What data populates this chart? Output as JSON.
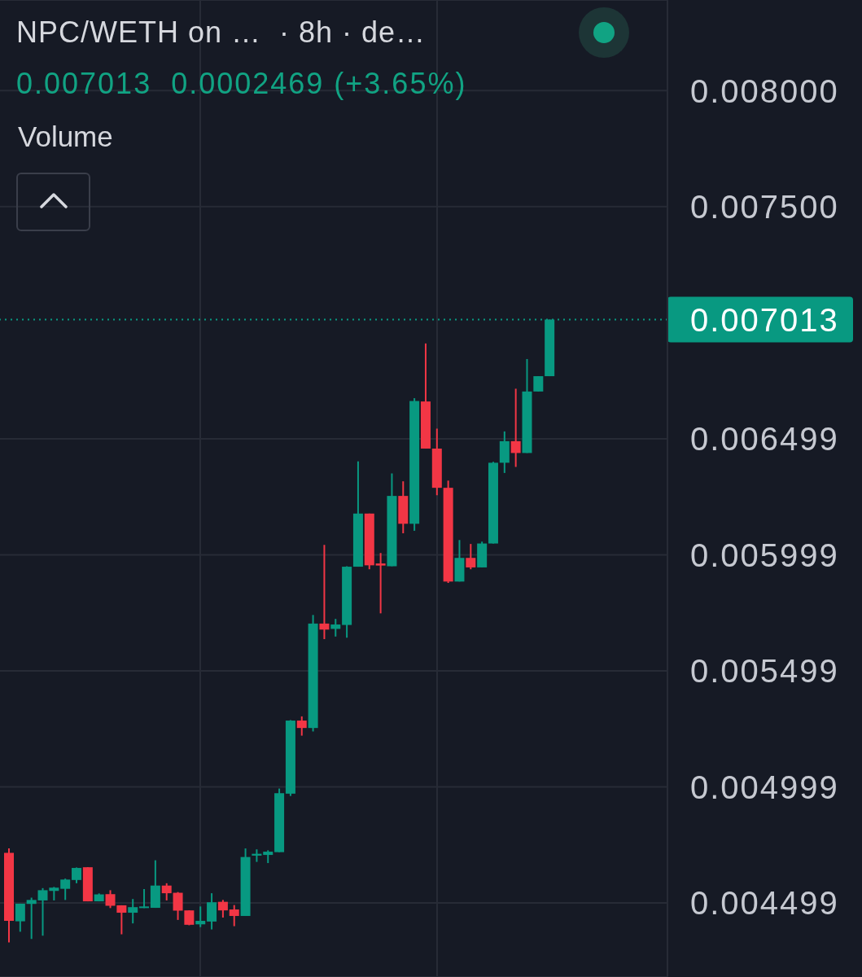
{
  "chart_data": {
    "type": "candlestick",
    "title": "NPC/WETH on …  · 8h · de…",
    "subtitle": "0.007013  0.0002469 (+3.65%)",
    "annotations": [
      "Volume"
    ],
    "categories": [
      null,
      null,
      null,
      null,
      null,
      null,
      null,
      null,
      null,
      null,
      null,
      null,
      null,
      null,
      null,
      null,
      null,
      null,
      null,
      null,
      null,
      null,
      null,
      null,
      null,
      null,
      null,
      null,
      null,
      null,
      null,
      null,
      null,
      null,
      null,
      null,
      null,
      null,
      null,
      null,
      null,
      null,
      null,
      null,
      null,
      null,
      null,
      null,
      null
    ],
    "ohlc": [
      [
        0.004715,
        0.004734,
        0.004329,
        0.004422
      ],
      [
        0.00442,
        0.004496,
        0.004375,
        0.004496
      ],
      [
        0.004495,
        0.004522,
        0.004344,
        0.004512
      ],
      [
        0.00451,
        0.004563,
        0.004358,
        0.004554
      ],
      [
        0.004551,
        0.004568,
        0.00451,
        0.004565
      ],
      [
        0.00456,
        0.004604,
        0.004512,
        0.0046
      ],
      [
        0.004598,
        0.004652,
        0.004584,
        0.00465
      ],
      [
        0.004653,
        0.004653,
        0.004506,
        0.004506
      ],
      [
        0.004506,
        0.00454,
        0.004506,
        0.004536
      ],
      [
        0.004537,
        0.004554,
        0.004477,
        0.004487
      ],
      [
        0.004489,
        0.004489,
        0.004364,
        0.004457
      ],
      [
        0.004457,
        0.004516,
        0.004411,
        0.004481
      ],
      [
        0.004477,
        0.004559,
        0.004477,
        0.004484
      ],
      [
        0.004478,
        0.004683,
        0.004478,
        0.004574
      ],
      [
        0.004574,
        0.004584,
        0.00451,
        0.004541
      ],
      [
        0.004543,
        0.004546,
        0.004426,
        0.004466
      ],
      [
        0.004467,
        0.004467,
        0.004403,
        0.004405
      ],
      [
        0.004407,
        0.004484,
        0.004395,
        0.004422
      ],
      [
        0.004419,
        0.004541,
        0.004385,
        0.004502
      ],
      [
        0.004504,
        0.004512,
        0.004436,
        0.004467
      ],
      [
        0.004471,
        0.00449,
        0.004399,
        0.004443
      ],
      [
        0.004443,
        0.004734,
        0.004443,
        0.004697
      ],
      [
        0.004703,
        0.00473,
        0.004676,
        0.004711
      ],
      [
        0.004706,
        0.004726,
        0.004671,
        0.00472
      ],
      [
        0.004718,
        0.004992,
        0.004718,
        0.004972
      ],
      [
        0.00497,
        0.005287,
        0.00496,
        0.005285
      ],
      [
        0.005285,
        0.005303,
        0.00522,
        0.005253
      ],
      [
        0.005253,
        0.00574,
        0.005238,
        0.005703
      ],
      [
        0.005703,
        0.006042,
        0.005636,
        0.005677
      ],
      [
        0.00568,
        0.005723,
        0.005647,
        0.005699
      ],
      [
        0.005697,
        0.00595,
        0.005642,
        0.005948
      ],
      [
        0.005948,
        0.006402,
        0.005948,
        0.006177
      ],
      [
        0.006177,
        0.006177,
        0.005937,
        0.005954
      ],
      [
        0.005962,
        0.006007,
        0.005747,
        0.005953
      ],
      [
        0.00595,
        0.00635,
        0.00595,
        0.006253
      ],
      [
        0.006253,
        0.006316,
        0.006092,
        0.006133
      ],
      [
        0.006133,
        0.006674,
        0.006103,
        0.006662
      ],
      [
        0.00666,
        0.00691,
        0.006457,
        0.006457
      ],
      [
        0.006457,
        0.006543,
        0.006256,
        0.006288
      ],
      [
        0.006288,
        0.006319,
        0.005878,
        0.005884
      ],
      [
        0.005884,
        0.006063,
        0.005884,
        0.005986
      ],
      [
        0.005986,
        0.006046,
        0.005937,
        0.005945
      ],
      [
        0.005945,
        0.006056,
        0.005945,
        0.006048
      ],
      [
        0.006048,
        0.0064,
        0.006048,
        0.006396
      ],
      [
        0.006396,
        0.006531,
        0.006352,
        0.006489
      ],
      [
        0.006489,
        0.006715,
        0.006378,
        0.006438
      ],
      [
        0.006438,
        0.006843,
        0.006438,
        0.006703
      ],
      [
        0.006703,
        0.006769,
        0.006703,
        0.006769
      ],
      [
        0.006769,
        0.007013,
        0.006769,
        0.007013
      ]
    ],
    "colors": [
      "#f23645",
      "#089981",
      "#089981",
      "#089981",
      "#089981",
      "#089981",
      "#089981",
      "#f23645",
      "#089981",
      "#f23645",
      "#f23645",
      "#089981",
      "#089981",
      "#089981",
      "#f23645",
      "#f23645",
      "#f23645",
      "#089981",
      "#089981",
      "#f23645",
      "#f23645",
      "#089981",
      "#089981",
      "#089981",
      "#089981",
      "#089981",
      "#f23645",
      "#089981",
      "#f23645",
      "#089981",
      "#089981",
      "#089981",
      "#f23645",
      "#f23645",
      "#089981",
      "#f23645",
      "#089981",
      "#f23645",
      "#f23645",
      "#f23645",
      "#089981",
      "#f23645",
      "#089981",
      "#089981",
      "#089981",
      "#f23645",
      "#089981",
      "#089981",
      "#089981"
    ],
    "ylim": [
      0.00418,
      0.00839
    ],
    "yticks": [
      {
        "value": 0.008,
        "label": "0.008000"
      },
      {
        "value": 0.0075,
        "label": "0.007500"
      },
      0.006499,
      0.005999,
      0.005499,
      0.004999,
      0.004499
    ],
    "ref_lines": [
      {
        "axis": "y",
        "value": 0.007013,
        "label": "0.007013",
        "color": "#089981",
        "line_style": "dotted"
      }
    ],
    "grid": "y",
    "tick_labels": "y"
  }
}
